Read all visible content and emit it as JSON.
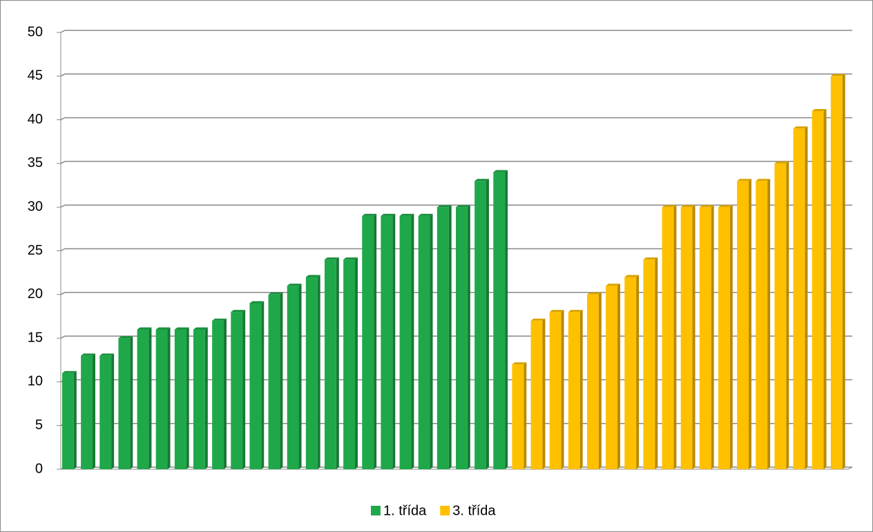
{
  "chart_data": {
    "type": "bar",
    "categories": [
      null,
      null,
      null,
      null,
      null,
      null,
      null,
      null,
      null,
      null,
      null,
      null,
      null,
      null,
      null,
      null,
      null,
      null,
      null,
      null,
      null,
      null,
      null,
      null,
      null,
      null,
      null,
      null,
      null,
      null,
      null,
      null,
      null,
      null,
      null,
      null,
      null,
      null,
      null,
      null,
      null,
      null
    ],
    "series": [
      {
        "name": "1. třída",
        "color": "#1fa84a",
        "values": [
          11,
          13,
          13,
          15,
          16,
          16,
          16,
          16,
          17,
          18,
          19,
          20,
          21,
          22,
          24,
          24,
          29,
          29,
          29,
          29,
          30,
          30,
          33,
          34,
          null,
          null,
          null,
          null,
          null,
          null,
          null,
          null,
          null,
          null,
          null,
          null,
          null,
          null,
          null,
          null,
          null,
          null
        ]
      },
      {
        "name": "3. třída",
        "color": "#ffc000",
        "values": [
          null,
          null,
          null,
          null,
          null,
          null,
          null,
          null,
          null,
          null,
          null,
          null,
          null,
          null,
          null,
          null,
          null,
          null,
          null,
          null,
          null,
          null,
          null,
          null,
          12,
          17,
          18,
          18,
          20,
          21,
          22,
          24,
          30,
          30,
          30,
          30,
          33,
          33,
          35,
          39,
          41,
          45
        ]
      }
    ],
    "ylim": [
      0,
      50
    ],
    "yticks": [
      0,
      5,
      10,
      15,
      20,
      25,
      30,
      35,
      40,
      45,
      50
    ],
    "grid": true,
    "legend": "bottom"
  }
}
